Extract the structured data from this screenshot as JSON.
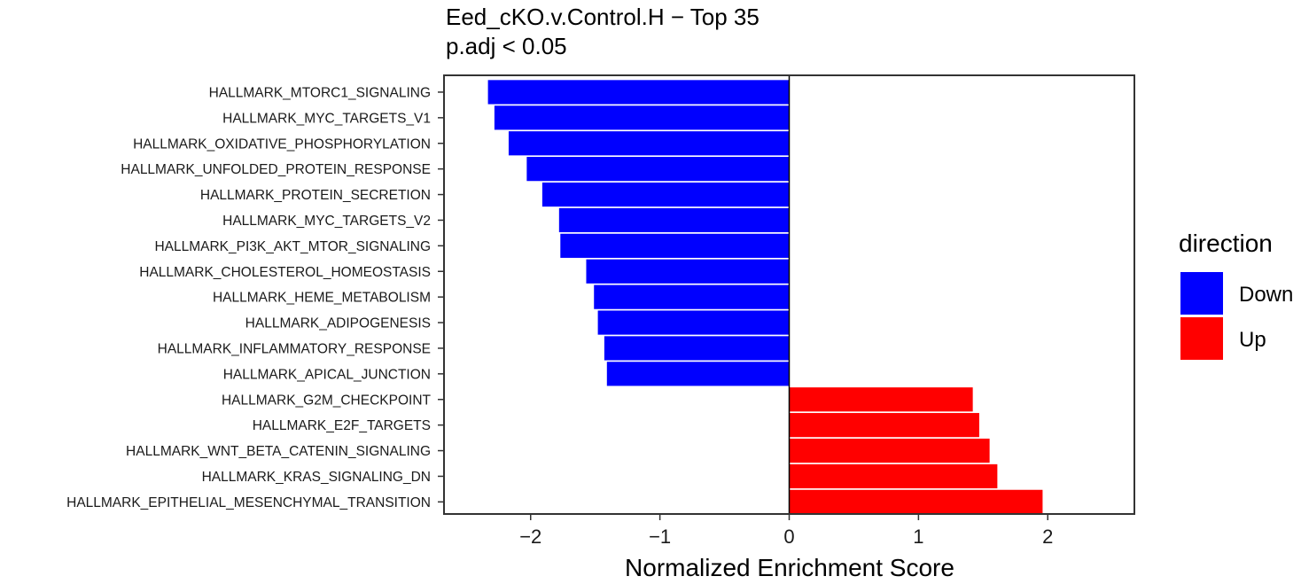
{
  "chart_data": {
    "type": "bar",
    "orientation": "horizontal",
    "title": "Eed_cKO.v.Control.H − Top 35",
    "subtitle": "p.adj < 0.05",
    "xlabel": "Normalized Enrichment Score",
    "ylabel": "",
    "xlim": [
      -2.67,
      2.67
    ],
    "xticks": [
      -2,
      -1,
      0,
      1,
      2
    ],
    "xtick_labels": [
      "−2",
      "−1",
      "0",
      "1",
      "2"
    ],
    "grid": false,
    "legend": {
      "title": "direction",
      "position": "right",
      "entries": [
        {
          "label": "Down",
          "color": "#0000ff"
        },
        {
          "label": "Up",
          "color": "#ff0000"
        }
      ]
    },
    "categories": [
      "HALLMARK_MTORC1_SIGNALING",
      "HALLMARK_MYC_TARGETS_V1",
      "HALLMARK_OXIDATIVE_PHOSPHORYLATION",
      "HALLMARK_UNFOLDED_PROTEIN_RESPONSE",
      "HALLMARK_PROTEIN_SECRETION",
      "HALLMARK_MYC_TARGETS_V2",
      "HALLMARK_PI3K_AKT_MTOR_SIGNALING",
      "HALLMARK_CHOLESTEROL_HOMEOSTASIS",
      "HALLMARK_HEME_METABOLISM",
      "HALLMARK_ADIPOGENESIS",
      "HALLMARK_INFLAMMATORY_RESPONSE",
      "HALLMARK_APICAL_JUNCTION",
      "HALLMARK_G2M_CHECKPOINT",
      "HALLMARK_E2F_TARGETS",
      "HALLMARK_WNT_BETA_CATENIN_SIGNALING",
      "HALLMARK_KRAS_SIGNALING_DN",
      "HALLMARK_EPITHELIAL_MESENCHYMAL_TRANSITION"
    ],
    "values": [
      -2.33,
      -2.28,
      -2.17,
      -2.03,
      -1.91,
      -1.78,
      -1.77,
      -1.57,
      -1.51,
      -1.48,
      -1.43,
      -1.41,
      1.42,
      1.47,
      1.55,
      1.61,
      1.96
    ],
    "direction": [
      "Down",
      "Down",
      "Down",
      "Down",
      "Down",
      "Down",
      "Down",
      "Down",
      "Down",
      "Down",
      "Down",
      "Down",
      "Up",
      "Up",
      "Up",
      "Up",
      "Up"
    ],
    "colors": {
      "Down": "#0000ff",
      "Up": "#ff0000"
    }
  }
}
